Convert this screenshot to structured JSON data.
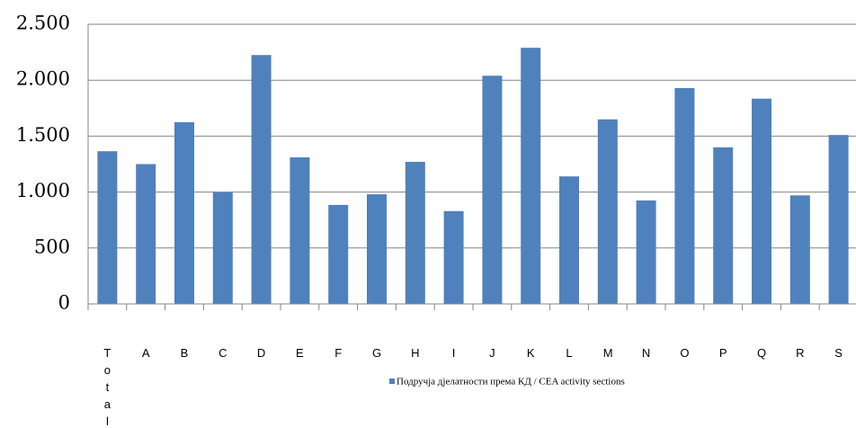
{
  "chart_data": {
    "type": "bar",
    "categories": [
      "Total",
      "A",
      "B",
      "C",
      "D",
      "E",
      "F",
      "G",
      "H",
      "I",
      "J",
      "K",
      "L",
      "M",
      "N",
      "O",
      "P",
      "Q",
      "R",
      "S"
    ],
    "series": [
      {
        "name": "Подручја дјелатности према КД / CEA activity sections",
        "color": "#4f81bd",
        "values": [
          1365,
          1250,
          1625,
          1000,
          2225,
          1310,
          885,
          980,
          1270,
          830,
          2040,
          2290,
          1140,
          1650,
          925,
          1930,
          1400,
          1835,
          970,
          1510
        ]
      }
    ],
    "ylim": [
      0,
      2500
    ],
    "yticks": [
      0,
      500,
      {
        "value": 1000,
        "label": "1.000"
      },
      {
        "value": 1500,
        "label": "1.500"
      },
      {
        "value": 2000,
        "label": "2.000"
      },
      {
        "value": 2500,
        "label": "2.500"
      }
    ],
    "grid": true
  }
}
